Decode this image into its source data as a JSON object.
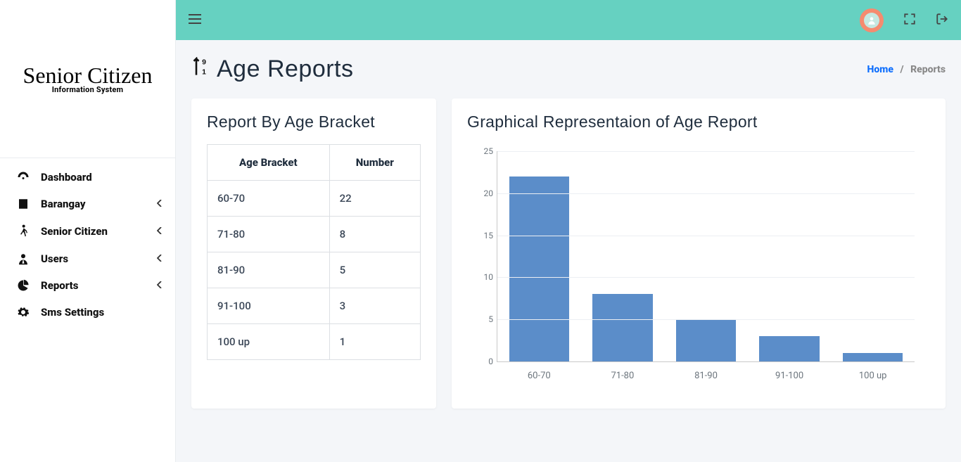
{
  "brand": {
    "title": "Senior Citizen",
    "subtitle": "Information System"
  },
  "sidebar": {
    "items": [
      {
        "label": "Dashboard",
        "icon": "dashboard-icon",
        "expandable": false
      },
      {
        "label": "Barangay",
        "icon": "building-icon",
        "expandable": true
      },
      {
        "label": "Senior Citizen",
        "icon": "walking-icon",
        "expandable": true
      },
      {
        "label": "Users",
        "icon": "user-tie-icon",
        "expandable": true
      },
      {
        "label": "Reports",
        "icon": "pie-chart-icon",
        "expandable": true
      },
      {
        "label": "Sms Settings",
        "icon": "gear-icon",
        "expandable": false
      }
    ]
  },
  "topbar_icons": [
    "avatar",
    "fullscreen-icon",
    "logout-icon"
  ],
  "page": {
    "title": "Age Reports"
  },
  "breadcrumb": {
    "home": "Home",
    "current": "Reports"
  },
  "table_card": {
    "title": "Report By Age Bracket",
    "columns": [
      "Age Bracket",
      "Number"
    ],
    "rows": [
      [
        "60-70",
        "22"
      ],
      [
        "71-80",
        "8"
      ],
      [
        "81-90",
        "5"
      ],
      [
        "91-100",
        "3"
      ],
      [
        "100 up",
        "1"
      ]
    ]
  },
  "chart": {
    "title": "Graphical Representaion of Age Report",
    "type": "bar",
    "categories": [
      "60-70",
      "71-80",
      "81-90",
      "91-100",
      "100 up"
    ],
    "values": [
      22,
      8,
      5,
      3,
      1
    ],
    "bar_color": "#5b8dc9",
    "background_color": "#ffffff",
    "grid_color": "#eceff3",
    "axis_color": "#c9c9c9",
    "ylim": [
      0,
      25
    ],
    "ytick_step": 5,
    "label_color": "#6c757d",
    "label_fontsize": 12,
    "bar_width": 0.72
  },
  "colors": {
    "topbar_bg": "#66d1c1",
    "body_bg": "#f4f6f9",
    "link": "#0d6efd"
  }
}
